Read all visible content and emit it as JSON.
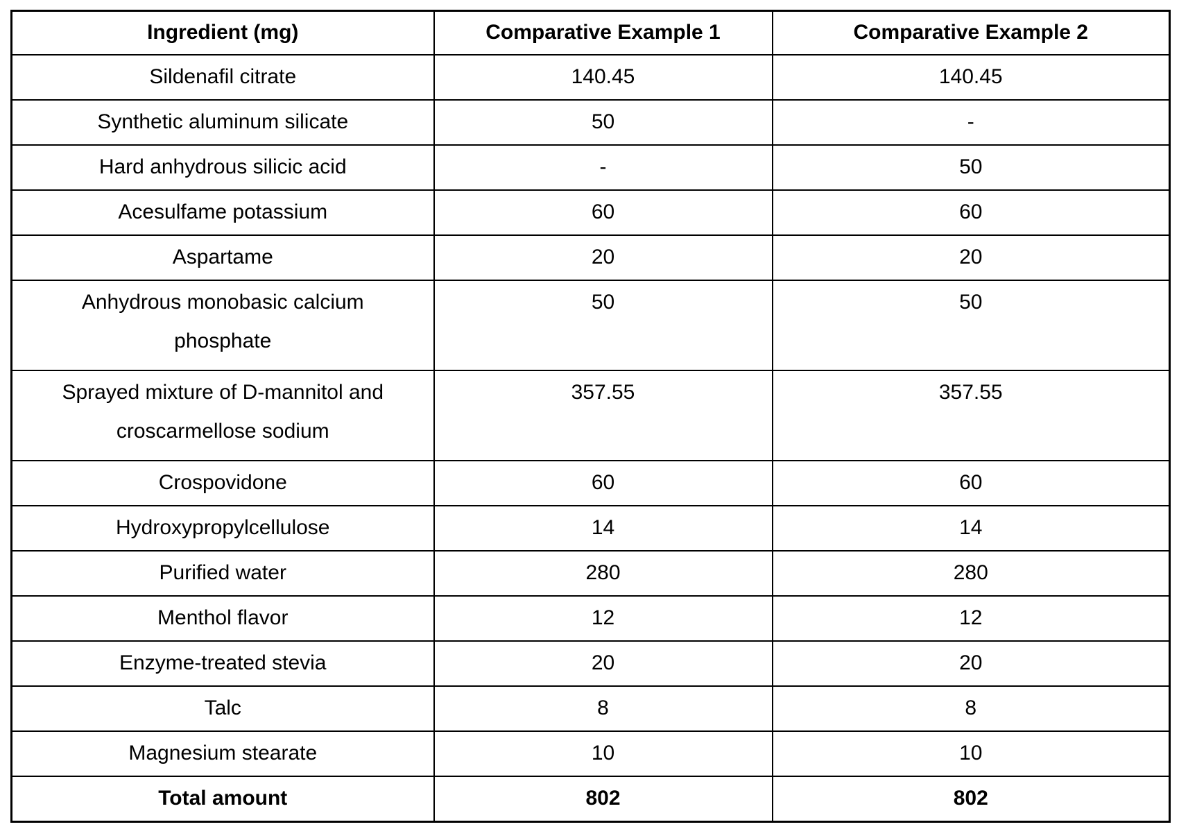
{
  "document": {
    "kind": "patent-ingredient-comparison-table"
  },
  "colors": {
    "background": "#ffffff",
    "border": "#000000",
    "text": "#000000"
  },
  "table": {
    "columns": [
      "Ingredient (mg)",
      "Comparative Example 1",
      "Comparative Example 2"
    ],
    "rows": [
      {
        "ingredient": "Sildenafil citrate",
        "ce1": "140.45",
        "ce2": "140.45",
        "tall": false,
        "bold": false
      },
      {
        "ingredient": "Synthetic aluminum silicate",
        "ce1": "50",
        "ce2": "-",
        "tall": false,
        "bold": false
      },
      {
        "ingredient": "Hard anhydrous silicic acid",
        "ce1": "-",
        "ce2": "50",
        "tall": false,
        "bold": false
      },
      {
        "ingredient": "Acesulfame potassium",
        "ce1": "60",
        "ce2": "60",
        "tall": false,
        "bold": false
      },
      {
        "ingredient": "Aspartame",
        "ce1": "20",
        "ce2": "20",
        "tall": false,
        "bold": false
      },
      {
        "ingredient": "Anhydrous monobasic calcium\nphosphate",
        "ce1": "50",
        "ce2": "50",
        "tall": true,
        "bold": false
      },
      {
        "ingredient": "Sprayed mixture of D-mannitol and\ncroscarmellose sodium",
        "ce1": "357.55",
        "ce2": "357.55",
        "tall": true,
        "bold": false
      },
      {
        "ingredient": "Crospovidone",
        "ce1": "60",
        "ce2": "60",
        "tall": false,
        "bold": false
      },
      {
        "ingredient": "Hydroxypropylcellulose",
        "ce1": "14",
        "ce2": "14",
        "tall": false,
        "bold": false
      },
      {
        "ingredient": "Purified water",
        "ce1": "280",
        "ce2": "280",
        "tall": false,
        "bold": false
      },
      {
        "ingredient": "Menthol flavor",
        "ce1": "12",
        "ce2": "12",
        "tall": false,
        "bold": false
      },
      {
        "ingredient": "Enzyme-treated stevia",
        "ce1": "20",
        "ce2": "20",
        "tall": false,
        "bold": false
      },
      {
        "ingredient": "Talc",
        "ce1": "8",
        "ce2": "8",
        "tall": false,
        "bold": false
      },
      {
        "ingredient": "Magnesium stearate",
        "ce1": "10",
        "ce2": "10",
        "tall": false,
        "bold": false
      },
      {
        "ingredient": "Total amount",
        "ce1": "802",
        "ce2": "802",
        "tall": false,
        "bold": true,
        "last": true
      }
    ]
  }
}
